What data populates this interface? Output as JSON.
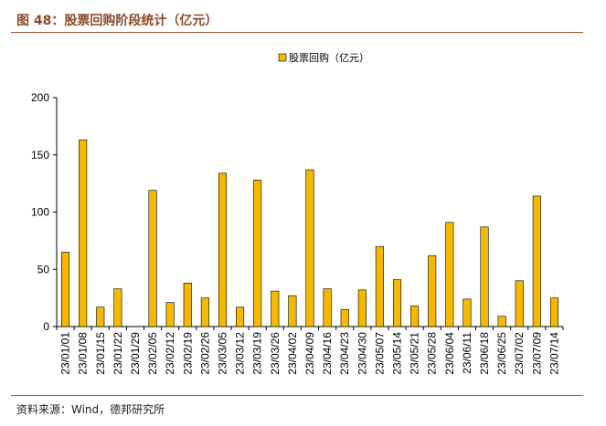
{
  "figure": {
    "title": "图 48：股票回购阶段统计（亿元）",
    "source": "资料来源：Wind，德邦研究所"
  },
  "colors": {
    "bar_fill": "#f5b800",
    "bar_stroke": "#000000",
    "rule": "#a0522d",
    "title": "#8b4a2b"
  },
  "chart_data": {
    "type": "bar",
    "title": "",
    "xlabel": "",
    "ylabel": "",
    "ylim": [
      0,
      200
    ],
    "yticks": [
      0,
      50,
      100,
      150,
      200
    ],
    "grid": false,
    "legend_position": "top-center",
    "categories": [
      "23/01/01",
      "23/01/08",
      "23/01/15",
      "23/01/22",
      "23/01/29",
      "23/02/05",
      "23/02/12",
      "23/02/19",
      "23/02/26",
      "23/03/05",
      "23/03/12",
      "23/03/19",
      "23/03/26",
      "23/04/02",
      "23/04/09",
      "23/04/16",
      "23/04/23",
      "23/04/30",
      "23/05/07",
      "23/05/14",
      "23/05/21",
      "23/05/28",
      "23/06/04",
      "23/06/11",
      "23/06/18",
      "23/06/25",
      "23/07/02",
      "23/07/09",
      "23/07/14"
    ],
    "series": [
      {
        "name": "股票回购（亿元）",
        "values": [
          65,
          163,
          17,
          33,
          0,
          119,
          21,
          38,
          25,
          134,
          17,
          128,
          31,
          27,
          137,
          33,
          15,
          32,
          70,
          41,
          18,
          62,
          91,
          24,
          87,
          9,
          40,
          114,
          25
        ]
      }
    ]
  }
}
